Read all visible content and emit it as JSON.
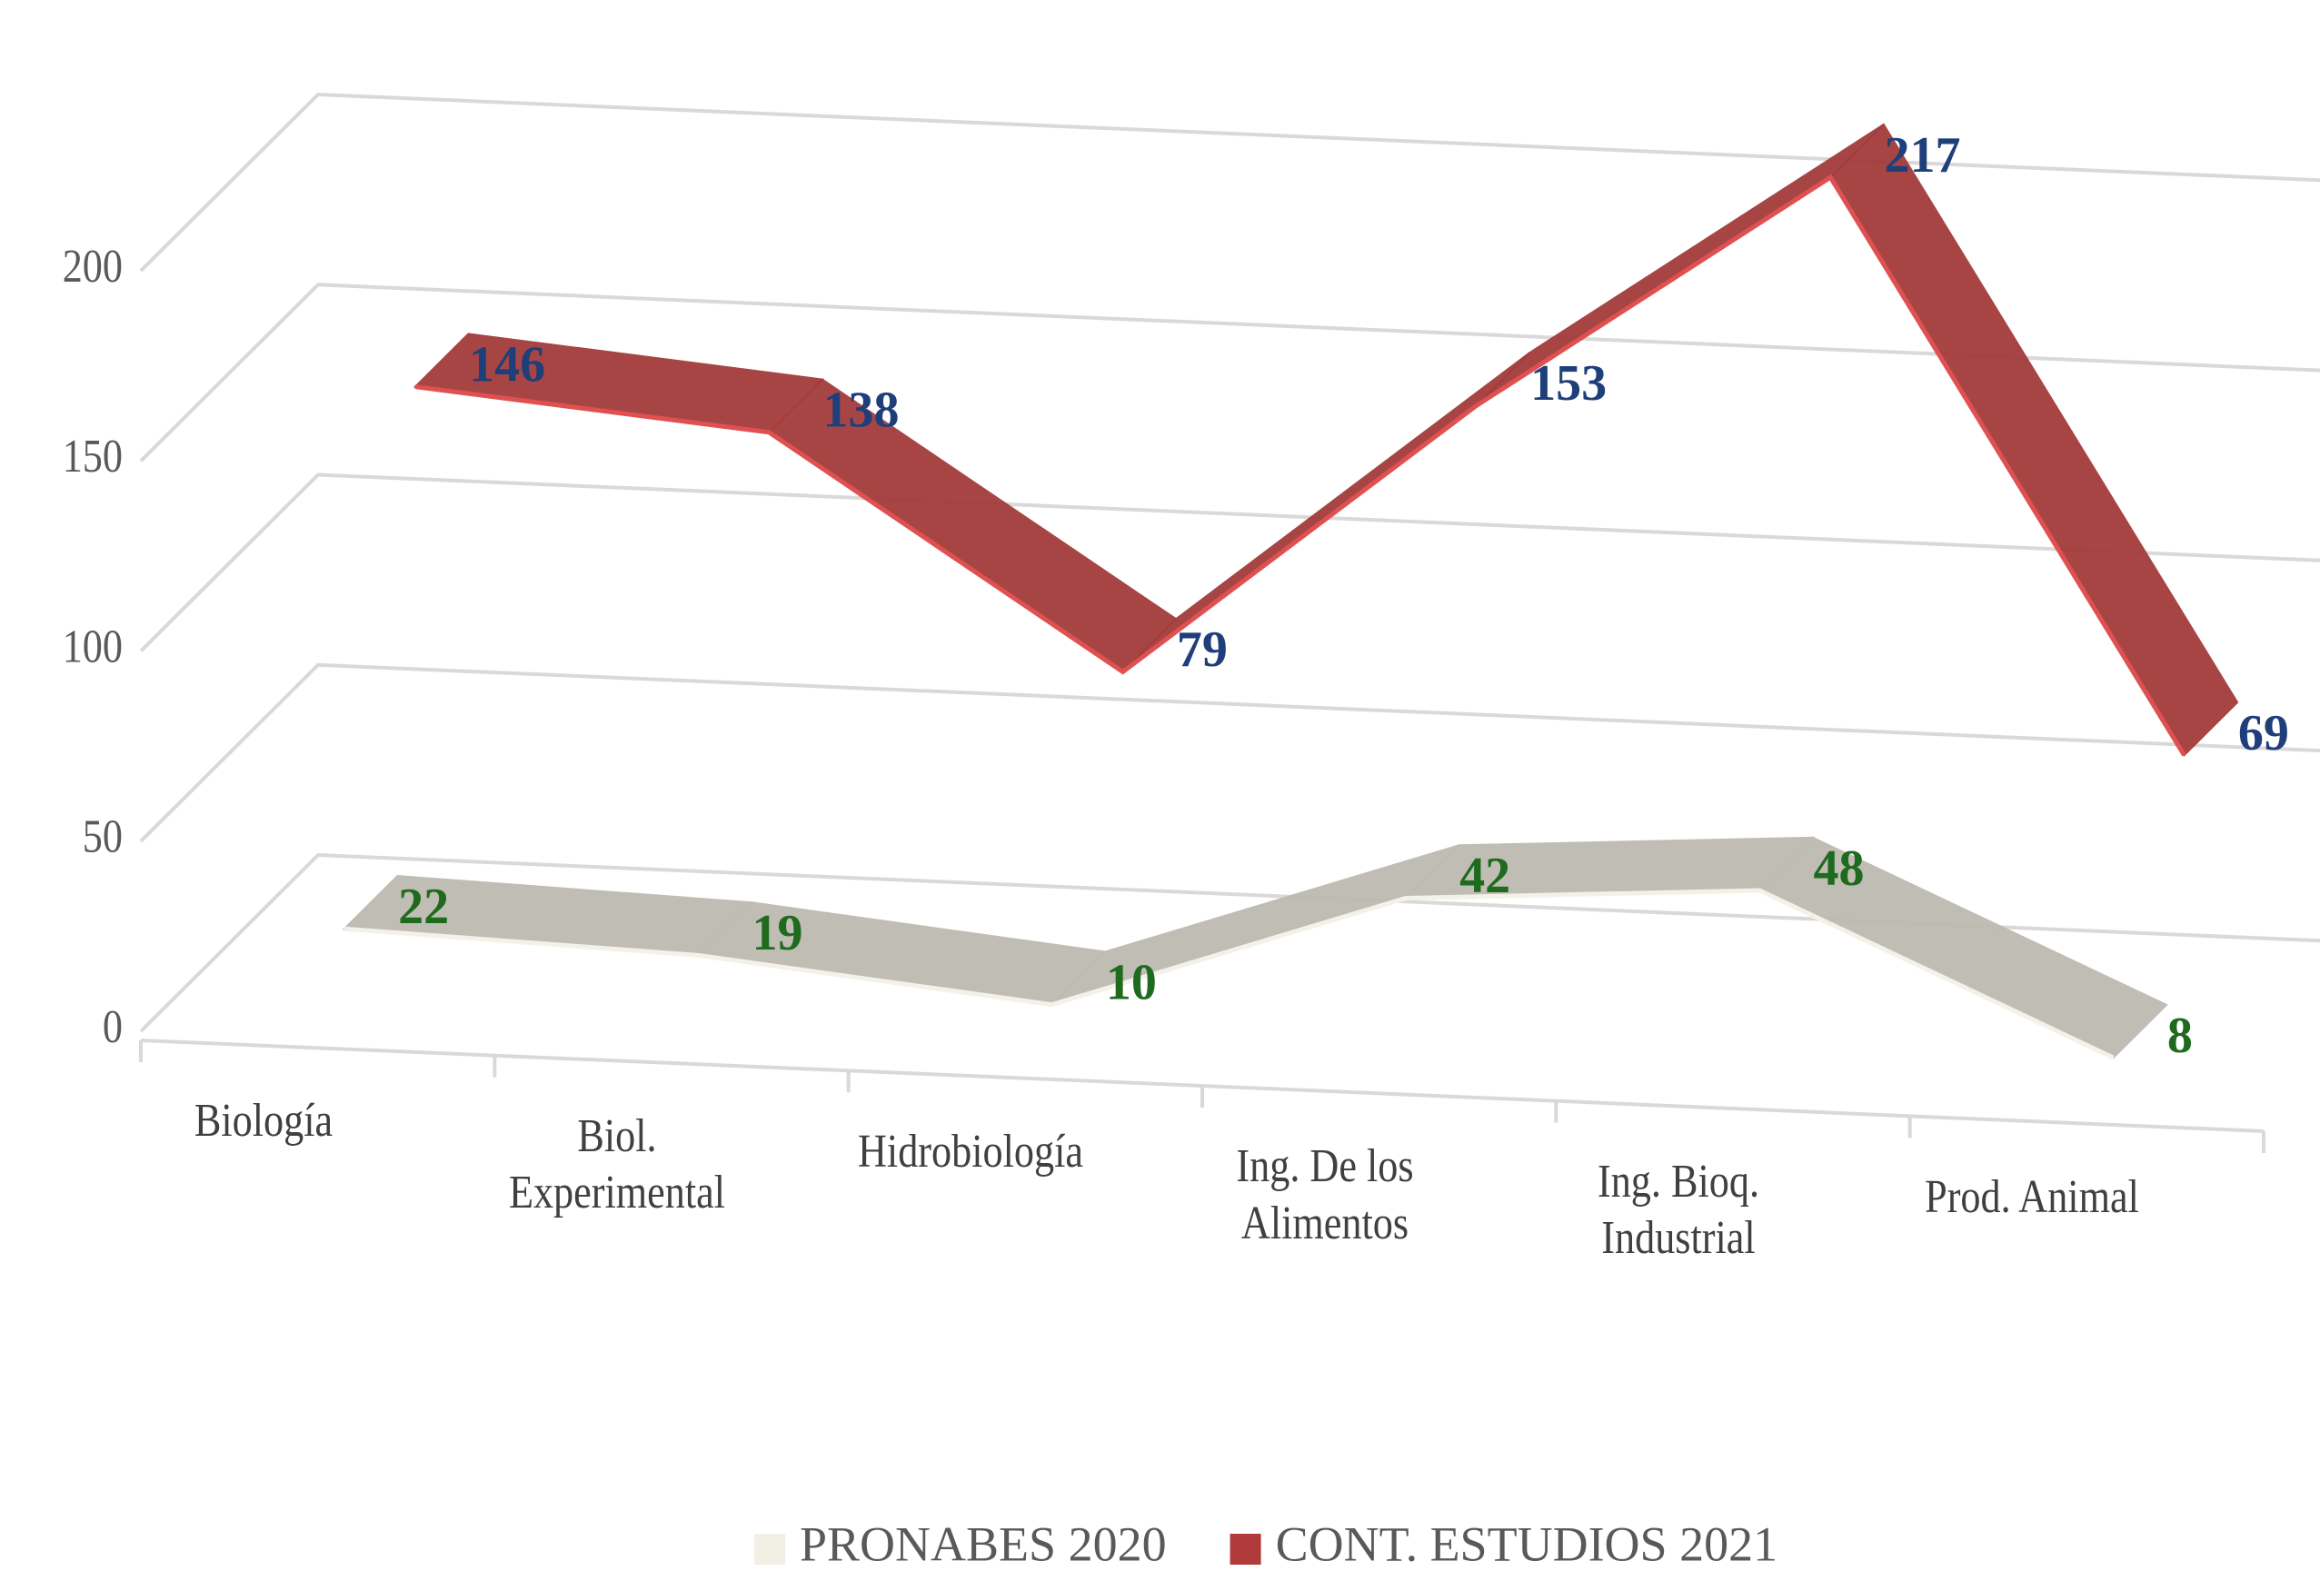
{
  "chart_data": {
    "type": "line3d",
    "categories": [
      "Biología",
      "Biol.\nExperimental",
      "Hidrobiología",
      "Ing. De los\nAlimentos",
      "Ing. Bioq.\nIndustrial",
      "Prod. Animal"
    ],
    "series": [
      {
        "name": "PRONABES 2020",
        "color": "#bdbab0",
        "legend_color": "#f2f0e4",
        "label_color": "#1e6b1e",
        "values": [
          22,
          19,
          10,
          42,
          48,
          8
        ]
      },
      {
        "name": "CONT. ESTUDIOS 2021",
        "color": "#a33c3c",
        "legend_color": "#b03a3a",
        "label_color": "#1f3f7a",
        "values": [
          146,
          138,
          79,
          153,
          217,
          69
        ]
      }
    ],
    "ylim": [
      0,
      250
    ],
    "yticks": [
      0,
      50,
      100,
      150,
      200
    ],
    "grid": true
  }
}
